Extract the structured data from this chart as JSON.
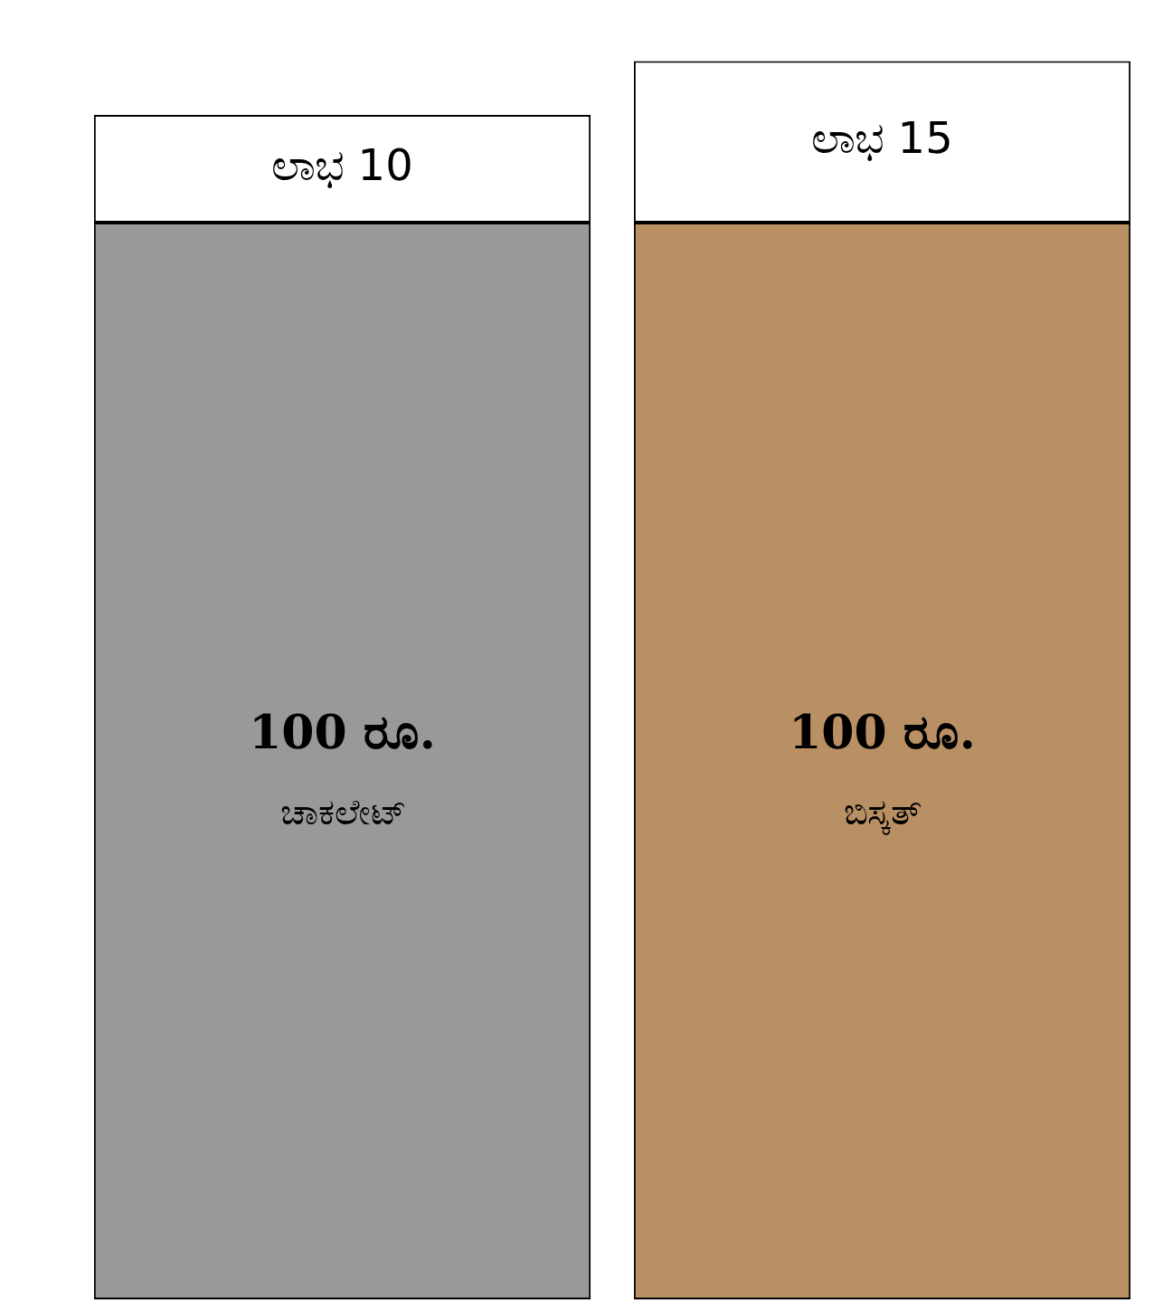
{
  "chart_data": {
    "type": "bar",
    "stacked": true,
    "categories": [
      "ಚಾಕಲೇಟ್",
      "ಬಿಸ್ಕತ್"
    ],
    "series": [
      {
        "colors": [
          "#999999",
          "#b99064"
        ],
        "values": [
          100,
          100
        ],
        "value_labels": [
          "100 ರೂ.",
          "100 ರೂ."
        ]
      },
      {
        "color": "#ffffff",
        "values": [
          10,
          15
        ],
        "value_labels": [
          "ಲಾಭ 10",
          "ಲಾಭ 15"
        ]
      }
    ],
    "legend": false,
    "tick_labels": false
  }
}
